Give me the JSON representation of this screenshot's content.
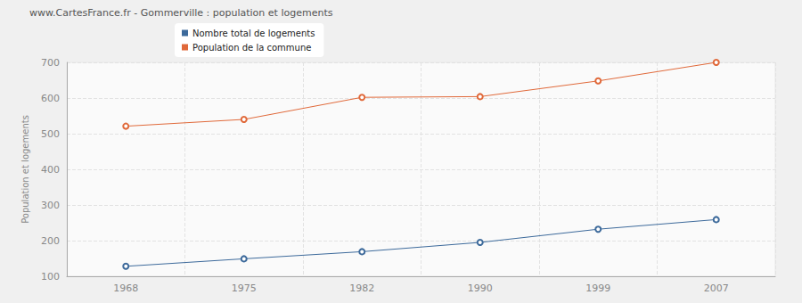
{
  "chart_data": {
    "type": "line",
    "title": "www.CartesFrance.fr - Gommerville : population et logements",
    "y_label": "Population et logements",
    "categories": [
      "1968",
      "1975",
      "1982",
      "1990",
      "1999",
      "2007"
    ],
    "series": [
      {
        "name": "Nombre total de logements",
        "color": "#3d6a9b",
        "marker": "circle",
        "values": [
          128,
          149,
          169,
          195,
          232,
          259
        ]
      },
      {
        "name": "Population de la commune",
        "color": "#e0693a",
        "marker": "circle",
        "values": [
          521,
          540,
          602,
          604,
          648,
          700
        ]
      }
    ],
    "ylim": [
      100,
      700
    ],
    "yticks": [
      100,
      200,
      300,
      400,
      500,
      600,
      700
    ],
    "grid": true,
    "legend": "top"
  }
}
